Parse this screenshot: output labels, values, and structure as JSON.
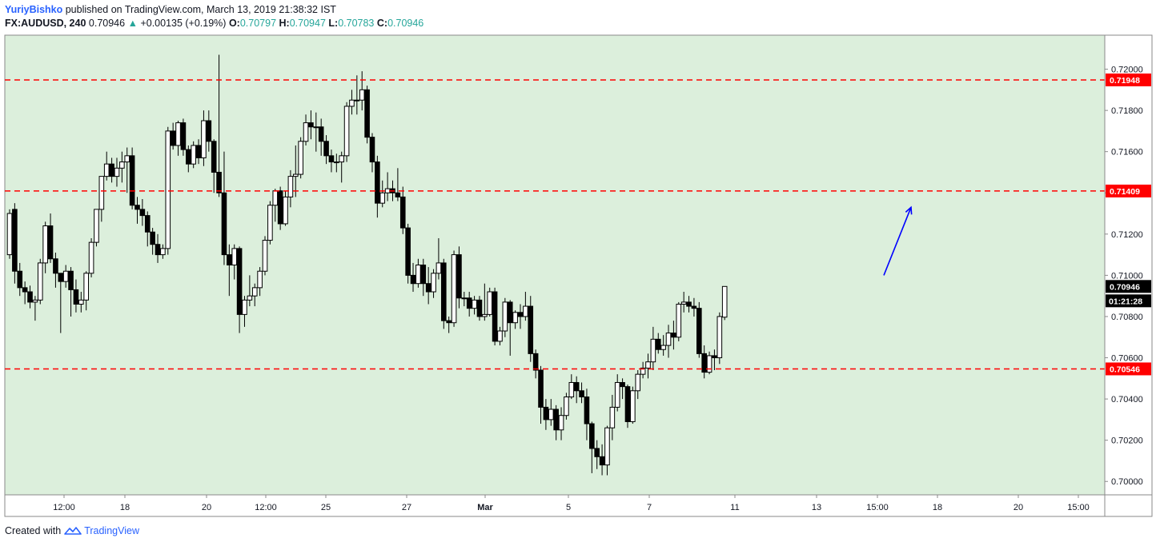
{
  "header": {
    "author": "YuriyBishko",
    "published": "published on TradingView.com, March 13, 2019 21:38:32 IST",
    "symbol": "FX:AUDUSD, 240",
    "last": "0.70946",
    "up_arrow": "▲",
    "change": "+0.00135 (+0.19%)",
    "o_label": "O:",
    "o_value": "0.70797",
    "h_label": "H:",
    "h_value": "0.70947",
    "l_label": "L:",
    "l_value": "0.70783",
    "c_label": "C:",
    "c_value": "0.70946"
  },
  "footer": {
    "created_with": "Created with",
    "brand": "TradingView",
    "logo_icon": "tradingview-logo-icon"
  },
  "colors": {
    "background": "#dcefdc",
    "level_line": "#ff0000",
    "arrow": "#0000ff",
    "candle_up": "#ffffff",
    "candle_down": "#000000",
    "brand": "#2962ff"
  },
  "chart_data": {
    "type": "candlestick",
    "ylim": [
      0.6995,
      0.721
    ],
    "y_ticks": [
      "0.72000",
      "0.71800",
      "0.71600",
      "0.71400",
      "0.71200",
      "0.71000",
      "0.70800",
      "0.70600",
      "0.70400",
      "0.70200",
      "0.70000"
    ],
    "x_ticks": [
      "12:00",
      "18",
      "20",
      "12:00",
      "25",
      "27",
      "Mar",
      "5",
      "7",
      "11",
      "13",
      "15:00",
      "18",
      "20",
      "15:00"
    ],
    "levels": [
      {
        "value": 0.71948,
        "label": "0.71948"
      },
      {
        "value": 0.71409,
        "label": "0.71409"
      },
      {
        "value": 0.70546,
        "label": "0.70546"
      }
    ],
    "last_price": {
      "value": 0.70946,
      "label": "0.70946",
      "countdown": "01:21:28"
    },
    "candles": [
      [
        0.711,
        0.713,
        0.7108,
        0.7132
      ],
      [
        0.7132,
        0.7102,
        0.7096,
        0.7135
      ],
      [
        0.7102,
        0.7094,
        0.709,
        0.7106
      ],
      [
        0.7094,
        0.7092,
        0.7086,
        0.7097
      ],
      [
        0.7092,
        0.7087,
        0.7084,
        0.7095
      ],
      [
        0.7087,
        0.7088,
        0.7078,
        0.709
      ],
      [
        0.7088,
        0.7106,
        0.7086,
        0.7108
      ],
      [
        0.7106,
        0.7124,
        0.7101,
        0.7126
      ],
      [
        0.7124,
        0.7108,
        0.7106,
        0.713
      ],
      [
        0.7108,
        0.7101,
        0.7094,
        0.7111
      ],
      [
        0.7101,
        0.7097,
        0.7072,
        0.7101
      ],
      [
        0.7097,
        0.7102,
        0.7094,
        0.7105
      ],
      [
        0.7102,
        0.7093,
        0.708,
        0.7104
      ],
      [
        0.7093,
        0.7086,
        0.7082,
        0.7098
      ],
      [
        0.7086,
        0.7088,
        0.7082,
        0.7092
      ],
      [
        0.7088,
        0.7101,
        0.7083,
        0.7102
      ],
      [
        0.7101,
        0.7116,
        0.7099,
        0.7118
      ],
      [
        0.7116,
        0.7132,
        0.7114,
        0.7132
      ],
      [
        0.7132,
        0.7148,
        0.7126,
        0.7148
      ],
      [
        0.7148,
        0.7154,
        0.7146,
        0.716
      ],
      [
        0.7154,
        0.7148,
        0.7145,
        0.7157
      ],
      [
        0.7148,
        0.7152,
        0.7143,
        0.7157
      ],
      [
        0.7152,
        0.7155,
        0.7145,
        0.716
      ],
      [
        0.7155,
        0.7158,
        0.714,
        0.7162
      ],
      [
        0.7158,
        0.7134,
        0.7132,
        0.7162
      ],
      [
        0.7134,
        0.7132,
        0.7125,
        0.7138
      ],
      [
        0.7132,
        0.7129,
        0.7124,
        0.7137
      ],
      [
        0.7129,
        0.7121,
        0.7114,
        0.7131
      ],
      [
        0.7121,
        0.7115,
        0.711,
        0.7123
      ],
      [
        0.7115,
        0.711,
        0.7106,
        0.712
      ],
      [
        0.711,
        0.7113,
        0.7108,
        0.7115
      ],
      [
        0.7113,
        0.717,
        0.711,
        0.7172
      ],
      [
        0.717,
        0.7163,
        0.7161,
        0.7174
      ],
      [
        0.7163,
        0.7174,
        0.7158,
        0.7175
      ],
      [
        0.7174,
        0.7161,
        0.7158,
        0.7176
      ],
      [
        0.7161,
        0.7154,
        0.715,
        0.7163
      ],
      [
        0.7154,
        0.7163,
        0.7152,
        0.7165
      ],
      [
        0.7163,
        0.7157,
        0.7154,
        0.7166
      ],
      [
        0.7157,
        0.7175,
        0.7153,
        0.718
      ],
      [
        0.7175,
        0.7165,
        0.716,
        0.718
      ],
      [
        0.7165,
        0.715,
        0.714,
        0.7166
      ],
      [
        0.715,
        0.714,
        0.7138,
        0.7207
      ],
      [
        0.714,
        0.711,
        0.7105,
        0.716
      ],
      [
        0.711,
        0.7105,
        0.709,
        0.7115
      ],
      [
        0.7105,
        0.7113,
        0.7098,
        0.7115
      ],
      [
        0.7113,
        0.7081,
        0.7072,
        0.7114
      ],
      [
        0.7081,
        0.7088,
        0.7075,
        0.709
      ],
      [
        0.7088,
        0.709,
        0.7085,
        0.71
      ],
      [
        0.709,
        0.7094,
        0.7085,
        0.7096
      ],
      [
        0.7094,
        0.7102,
        0.709,
        0.7104
      ],
      [
        0.7102,
        0.7117,
        0.71,
        0.7119
      ],
      [
        0.7117,
        0.7134,
        0.7115,
        0.7136
      ],
      [
        0.7134,
        0.7141,
        0.7126,
        0.7142
      ],
      [
        0.7141,
        0.7125,
        0.7122,
        0.7143
      ],
      [
        0.7125,
        0.7138,
        0.7124,
        0.7141
      ],
      [
        0.7138,
        0.7148,
        0.7133,
        0.7151
      ],
      [
        0.7148,
        0.7149,
        0.7138,
        0.7163
      ],
      [
        0.7149,
        0.7165,
        0.7147,
        0.7167
      ],
      [
        0.7165,
        0.7174,
        0.7163,
        0.7178
      ],
      [
        0.7174,
        0.7172,
        0.7166,
        0.718
      ],
      [
        0.7172,
        0.7172,
        0.716,
        0.7179
      ],
      [
        0.7172,
        0.7165,
        0.7158,
        0.7176
      ],
      [
        0.7165,
        0.7158,
        0.7154,
        0.7168
      ],
      [
        0.7158,
        0.7155,
        0.715,
        0.7161
      ],
      [
        0.7155,
        0.7155,
        0.715,
        0.7159
      ],
      [
        0.7155,
        0.7158,
        0.7145,
        0.716
      ],
      [
        0.7158,
        0.7182,
        0.7155,
        0.7184
      ],
      [
        0.7182,
        0.7185,
        0.7178,
        0.719
      ],
      [
        0.7185,
        0.7185,
        0.7178,
        0.7197
      ],
      [
        0.7185,
        0.719,
        0.718,
        0.7199
      ],
      [
        0.719,
        0.7167,
        0.7164,
        0.7192
      ],
      [
        0.7167,
        0.7155,
        0.715,
        0.7169
      ],
      [
        0.7155,
        0.7135,
        0.7128,
        0.7158
      ],
      [
        0.7135,
        0.714,
        0.7133,
        0.7146
      ],
      [
        0.714,
        0.7142,
        0.7136,
        0.715
      ],
      [
        0.7142,
        0.714,
        0.7136,
        0.7146
      ],
      [
        0.714,
        0.7138,
        0.7136,
        0.7152
      ],
      [
        0.7138,
        0.7123,
        0.712,
        0.7143
      ],
      [
        0.7123,
        0.71,
        0.7096,
        0.7125
      ],
      [
        0.71,
        0.7096,
        0.7092,
        0.7106
      ],
      [
        0.7096,
        0.7105,
        0.7094,
        0.7108
      ],
      [
        0.7105,
        0.7096,
        0.709,
        0.7108
      ],
      [
        0.7096,
        0.7092,
        0.7086,
        0.7104
      ],
      [
        0.7092,
        0.7101,
        0.7089,
        0.7103
      ],
      [
        0.7101,
        0.7106,
        0.7098,
        0.7118
      ],
      [
        0.7106,
        0.7078,
        0.7074,
        0.7108
      ],
      [
        0.7078,
        0.7077,
        0.7072,
        0.708
      ],
      [
        0.7077,
        0.711,
        0.7075,
        0.7112
      ],
      [
        0.711,
        0.7089,
        0.7084,
        0.7114
      ],
      [
        0.7089,
        0.7089,
        0.7085,
        0.7092
      ],
      [
        0.7089,
        0.7084,
        0.708,
        0.7092
      ],
      [
        0.7084,
        0.7088,
        0.7081,
        0.709
      ],
      [
        0.7088,
        0.708,
        0.7078,
        0.709
      ],
      [
        0.708,
        0.7081,
        0.7078,
        0.7096
      ],
      [
        0.7081,
        0.7092,
        0.708,
        0.7094
      ],
      [
        0.7092,
        0.7068,
        0.7066,
        0.7094
      ],
      [
        0.7068,
        0.7073,
        0.7066,
        0.7075
      ],
      [
        0.7073,
        0.7087,
        0.707,
        0.7089
      ],
      [
        0.7087,
        0.7077,
        0.7061,
        0.7088
      ],
      [
        0.7077,
        0.7082,
        0.7074,
        0.7083
      ],
      [
        0.7082,
        0.708,
        0.7074,
        0.7086
      ],
      [
        0.708,
        0.7085,
        0.7078,
        0.7092
      ],
      [
        0.7085,
        0.7062,
        0.7058,
        0.709
      ],
      [
        0.7062,
        0.7054,
        0.705,
        0.7064
      ],
      [
        0.7054,
        0.7036,
        0.7028,
        0.7056
      ],
      [
        0.7036,
        0.703,
        0.7025,
        0.704
      ],
      [
        0.703,
        0.7035,
        0.7027,
        0.704
      ],
      [
        0.7035,
        0.7025,
        0.702,
        0.7037
      ],
      [
        0.7025,
        0.7032,
        0.702,
        0.7036
      ],
      [
        0.7032,
        0.7041,
        0.703,
        0.7043
      ],
      [
        0.7041,
        0.7048,
        0.704,
        0.7052
      ],
      [
        0.7048,
        0.7044,
        0.7038,
        0.7051
      ],
      [
        0.7044,
        0.7041,
        0.7038,
        0.7048
      ],
      [
        0.7041,
        0.7028,
        0.702,
        0.7045
      ],
      [
        0.7028,
        0.7016,
        0.7004,
        0.7029
      ],
      [
        0.7016,
        0.7012,
        0.7006,
        0.702
      ],
      [
        0.7012,
        0.7008,
        0.7003,
        0.7018
      ],
      [
        0.7008,
        0.7026,
        0.7003,
        0.7027
      ],
      [
        0.7026,
        0.7036,
        0.702,
        0.7042
      ],
      [
        0.7036,
        0.7048,
        0.7034,
        0.7052
      ],
      [
        0.7048,
        0.7046,
        0.704,
        0.705
      ],
      [
        0.7046,
        0.7029,
        0.7026,
        0.7047
      ],
      [
        0.7029,
        0.7044,
        0.7028,
        0.7046
      ],
      [
        0.7044,
        0.7052,
        0.704,
        0.7054
      ],
      [
        0.7052,
        0.7055,
        0.705,
        0.7058
      ],
      [
        0.7055,
        0.7058,
        0.705,
        0.7062
      ],
      [
        0.7058,
        0.7069,
        0.7054,
        0.7075
      ],
      [
        0.7069,
        0.7064,
        0.7062,
        0.7072
      ],
      [
        0.7064,
        0.7066,
        0.7061,
        0.7071
      ],
      [
        0.7066,
        0.7072,
        0.706,
        0.7076
      ],
      [
        0.7072,
        0.707,
        0.7064,
        0.7078
      ],
      [
        0.707,
        0.7086,
        0.7068,
        0.7087
      ],
      [
        0.7086,
        0.7087,
        0.7082,
        0.7092
      ],
      [
        0.7087,
        0.7085,
        0.7082,
        0.709
      ],
      [
        0.7085,
        0.7084,
        0.708,
        0.7089
      ],
      [
        0.7084,
        0.7062,
        0.706,
        0.7087
      ],
      [
        0.7062,
        0.7053,
        0.705,
        0.7066
      ],
      [
        0.7053,
        0.7061,
        0.7052,
        0.7063
      ],
      [
        0.7061,
        0.706,
        0.7054,
        0.7064
      ],
      [
        0.706,
        0.708,
        0.7057,
        0.7082
      ],
      [
        0.70797,
        0.70946,
        0.70783,
        0.70947
      ]
    ],
    "arrow": {
      "from": [
        0.71
      ],
      "to": [
        0.7133
      ]
    }
  }
}
